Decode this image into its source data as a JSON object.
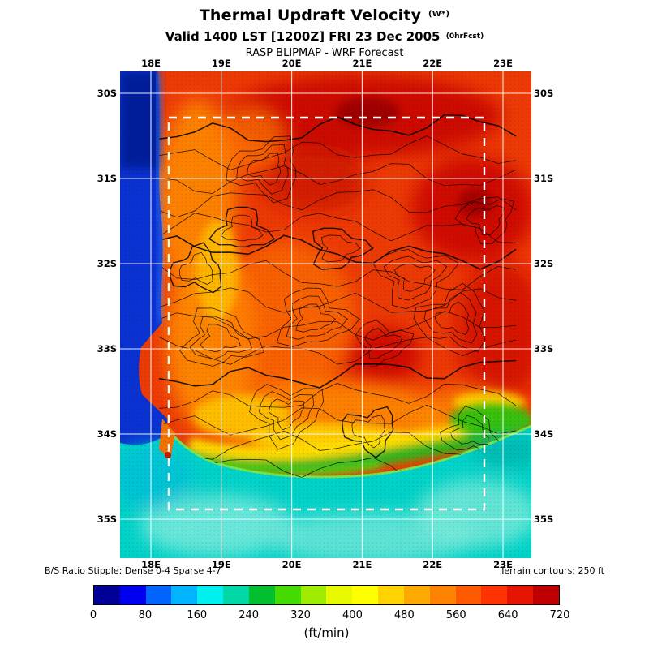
{
  "header": {
    "title": "Thermal Updraft Velocity",
    "title_suffix": "(W*)",
    "valid_line": "Valid 1400 LST [1200Z] FRI 23 Dec 2005",
    "valid_suffix": "(0hrFcst)",
    "model_line": "RASP BLIPMAP - WRF Forecast"
  },
  "map": {
    "lon_labels": [
      "18E",
      "19E",
      "20E",
      "21E",
      "22E",
      "23E"
    ],
    "lat_labels": [
      "30S",
      "31S",
      "32S",
      "33S",
      "34S",
      "35S"
    ]
  },
  "footnotes": {
    "stipple": "B/S Ratio Stipple: Dense 0-4  Sparse 4-7",
    "terrain": "Terrain contours: 250 ft"
  },
  "colorbar": {
    "units": "(ft/min)",
    "min": 0,
    "max": 720,
    "step": 40,
    "tick_labels": [
      "0",
      "80",
      "160",
      "240",
      "320",
      "400",
      "480",
      "560",
      "640",
      "720"
    ],
    "colors": [
      "#000096",
      "#0000f0",
      "#0064ff",
      "#00b4ff",
      "#00f0f0",
      "#00d8a8",
      "#00c030",
      "#44dc00",
      "#a0ec00",
      "#e8f800",
      "#ffff00",
      "#ffd200",
      "#ffaa00",
      "#ff8200",
      "#ff5a00",
      "#ff3200",
      "#e61400",
      "#c00000"
    ]
  },
  "chart_data": {
    "type": "heatmap",
    "title": "Thermal Updraft Velocity (W*)",
    "subtitle": "Valid 1400 LST [1200Z] FRI 23 Dec 2005 (0hrFcst)",
    "source": "RASP BLIPMAP - WRF Forecast",
    "x_ticks": [
      "18E",
      "19E",
      "20E",
      "21E",
      "22E",
      "23E"
    ],
    "y_ticks": [
      "30S",
      "31S",
      "32S",
      "33S",
      "34S",
      "35S"
    ],
    "units": "ft/min",
    "grid": true,
    "legend_position": "bottom",
    "scale": {
      "min": 0,
      "max": 720,
      "step": 40,
      "tick_values": [
        0,
        80,
        160,
        240,
        320,
        400,
        480,
        560,
        640,
        720
      ],
      "colors": [
        "#000096",
        "#0000f0",
        "#0064ff",
        "#00b4ff",
        "#00f0f0",
        "#00d8a8",
        "#00c030",
        "#44dc00",
        "#a0ec00",
        "#e8f800",
        "#ffff00",
        "#ffd200",
        "#ffaa00",
        "#ff8200",
        "#ff5a00",
        "#ff3200",
        "#e61400",
        "#c00000"
      ]
    },
    "regions": [
      {
        "area": "interior land 30S-33.5S",
        "value_range_ftmin": [
          520,
          720
        ]
      },
      {
        "area": "west-coast interior strip",
        "value_range_ftmin": [
          440,
          560
        ]
      },
      {
        "area": "south coastal band ~34S",
        "value_range_ftmin": [
          240,
          440
        ]
      },
      {
        "area": "Atlantic ocean strip west of coast",
        "value_range_ftmin": [
          0,
          120
        ]
      },
      {
        "area": "southern ocean below 34.5S",
        "value_range_ftmin": [
          120,
          240
        ]
      }
    ],
    "annotations": [
      "B/S Ratio Stipple: Dense 0-4  Sparse 4-7",
      "Terrain contours: 250 ft"
    ],
    "overlays": [
      "black terrain contour lines",
      "white lat/lon grid",
      "white dashed nested-domain box",
      "black B/S-ratio stipple dots"
    ]
  }
}
